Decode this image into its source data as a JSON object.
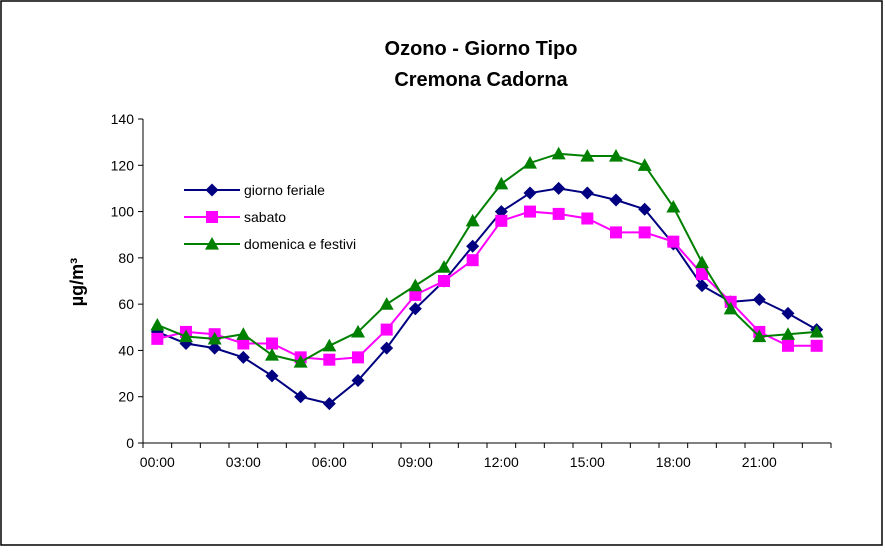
{
  "chart_data": {
    "type": "line",
    "title": "Ozono - Giorno Tipo",
    "subtitle": "Cremona Cadorna",
    "ylabel": "µg/m³",
    "xlabel": "",
    "ylim": [
      0,
      140
    ],
    "yticks": [
      "0",
      "20",
      "40",
      "60",
      "80",
      "100",
      "120",
      "140"
    ],
    "x": [
      "00:00",
      "01:00",
      "02:00",
      "03:00",
      "04:00",
      "05:00",
      "06:00",
      "07:00",
      "08:00",
      "09:00",
      "10:00",
      "11:00",
      "12:00",
      "13:00",
      "14:00",
      "15:00",
      "16:00",
      "17:00",
      "18:00",
      "19:00",
      "20:00",
      "21:00",
      "22:00",
      "23:00"
    ],
    "xticks": [
      "00:00",
      "03:00",
      "06:00",
      "09:00",
      "12:00",
      "15:00",
      "18:00",
      "21:00"
    ],
    "grid": false,
    "legend_position": "left",
    "series": [
      {
        "name": "giorno feriale",
        "color": "#000080",
        "marker": "diamond",
        "values": [
          48,
          43,
          41,
          37,
          29,
          20,
          17,
          27,
          41,
          58,
          70,
          85,
          100,
          108,
          110,
          108,
          105,
          101,
          86,
          68,
          61,
          62,
          56,
          49
        ]
      },
      {
        "name": "sabato",
        "color": "#ff00ff",
        "marker": "square",
        "values": [
          45,
          48,
          47,
          43,
          43,
          37,
          36,
          37,
          49,
          64,
          70,
          79,
          96,
          100,
          99,
          97,
          91,
          91,
          87,
          73,
          61,
          48,
          42,
          42
        ]
      },
      {
        "name": "domenica e festivi",
        "color": "#008000",
        "marker": "triangle",
        "values": [
          51,
          46,
          45,
          47,
          38,
          35,
          42,
          48,
          60,
          68,
          76,
          96,
          112,
          121,
          125,
          124,
          124,
          120,
          102,
          78,
          58,
          46,
          47,
          48
        ]
      }
    ]
  }
}
